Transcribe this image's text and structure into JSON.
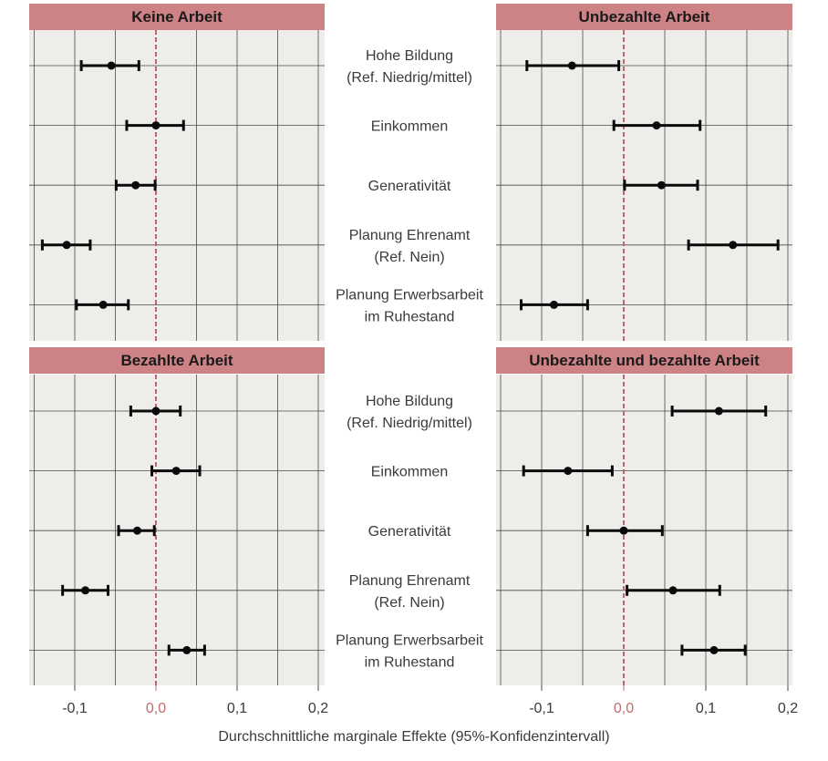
{
  "chart_data": {
    "type": "forest",
    "xlabel": "Durchschnittliche marginale Effekte (95%-Konfidenzintervall)",
    "xlim": [
      -0.15,
      0.2
    ],
    "xticks": [
      -0.1,
      0.0,
      0.1,
      0.2
    ],
    "xtick_labels": [
      "-0,1",
      "0,0",
      "0,1",
      "0,2"
    ],
    "reference_line": 0.0,
    "grid": true,
    "categories": [
      [
        "Hohe Bildung",
        "(Ref. Niedrig/mittel)"
      ],
      [
        "Einkommen"
      ],
      [
        "Generativität"
      ],
      [
        "Planung Ehrenamt",
        "(Ref. Nein)"
      ],
      [
        "Planung Erwerbsarbeit",
        "im Ruhestand"
      ]
    ],
    "panels": [
      {
        "title": "Keine Arbeit",
        "estimates": [
          -0.055,
          0.0,
          -0.025,
          -0.11,
          -0.065
        ],
        "lower": [
          -0.092,
          -0.036,
          -0.049,
          -0.14,
          -0.098
        ],
        "upper": [
          -0.021,
          0.034,
          -0.001,
          -0.081,
          -0.034
        ]
      },
      {
        "title": "Unbezahlte Arbeit",
        "estimates": [
          -0.063,
          0.04,
          0.046,
          0.133,
          -0.085
        ],
        "lower": [
          -0.118,
          -0.012,
          0.001,
          0.079,
          -0.125
        ],
        "upper": [
          -0.006,
          0.093,
          0.09,
          0.188,
          -0.044
        ]
      },
      {
        "title": "Bezahlte Arbeit",
        "estimates": [
          0.0,
          0.025,
          -0.023,
          -0.087,
          0.038
        ],
        "lower": [
          -0.031,
          -0.005,
          -0.046,
          -0.115,
          0.016
        ],
        "upper": [
          0.03,
          0.054,
          -0.002,
          -0.059,
          0.06
        ]
      },
      {
        "title": "Unbezahlte und bezahlte Arbeit",
        "estimates": [
          0.116,
          -0.068,
          0.0,
          0.06,
          0.11
        ],
        "lower": [
          0.059,
          -0.122,
          -0.044,
          0.004,
          0.071
        ],
        "upper": [
          0.173,
          -0.014,
          0.047,
          0.117,
          0.148
        ]
      }
    ]
  },
  "colors": {
    "panel_bg": "#efedea",
    "grid": "#4a4a4a",
    "header_bg": "#cd8286",
    "header_text": "#1a1a1a",
    "zero_line": "#c4646a",
    "zero_tick": "#c26a6f",
    "points": "#0a0a0a",
    "label_text": "#3a3a3a"
  }
}
